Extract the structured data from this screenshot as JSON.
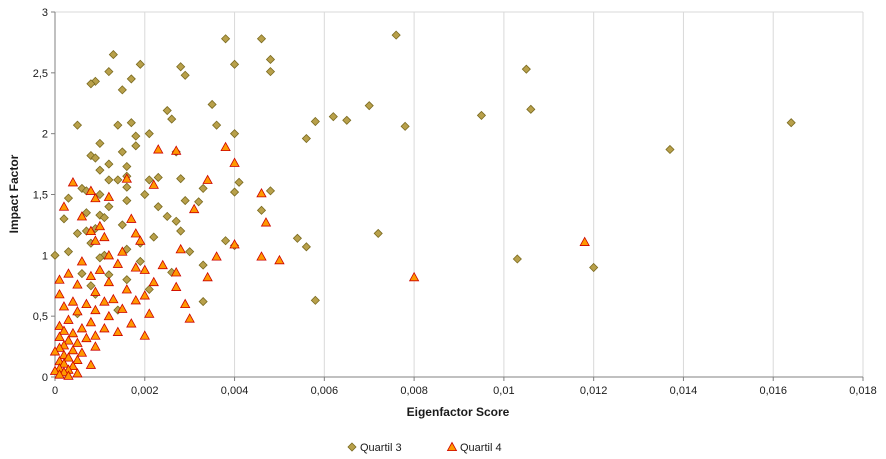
{
  "chart_data": {
    "type": "scatter",
    "xlabel": "Eigenfactor Score",
    "ylabel": "Impact Factor",
    "xlim": [
      0,
      0.018
    ],
    "ylim": [
      0,
      3
    ],
    "x_ticks": [
      0,
      0.002,
      0.004,
      0.006,
      0.008,
      0.01,
      0.012,
      0.014,
      0.016,
      0.018
    ],
    "x_tick_labels": [
      "0",
      "0,002",
      "0,004",
      "0,006",
      "0,008",
      "0,01",
      "0,012",
      "0,014",
      "0,016",
      "0,018"
    ],
    "y_ticks": [
      0,
      0.5,
      1,
      1.5,
      2,
      2.5,
      3
    ],
    "y_tick_labels": [
      "0",
      "0,5",
      "1",
      "1,5",
      "2",
      "2,5",
      "3"
    ],
    "grid": "vertical",
    "legend": "bottom",
    "series": [
      {
        "name": "Quartil 3",
        "marker": "diamond",
        "color": "#b8a04a",
        "stroke": "#7a6a20",
        "points": [
          [
            0.0076,
            2.81
          ],
          [
            0.0038,
            2.78
          ],
          [
            0.0046,
            2.78
          ],
          [
            0.0013,
            2.65
          ],
          [
            0.0048,
            2.61
          ],
          [
            0.0019,
            2.57
          ],
          [
            0.004,
            2.57
          ],
          [
            0.0028,
            2.55
          ],
          [
            0.0105,
            2.53
          ],
          [
            0.0048,
            2.51
          ],
          [
            0.0012,
            2.51
          ],
          [
            0.0029,
            2.48
          ],
          [
            0.0017,
            2.45
          ],
          [
            0.0009,
            2.43
          ],
          [
            0.0008,
            2.41
          ],
          [
            0.0015,
            2.36
          ],
          [
            0.0035,
            2.24
          ],
          [
            0.007,
            2.23
          ],
          [
            0.0106,
            2.2
          ],
          [
            0.0025,
            2.19
          ],
          [
            0.0062,
            2.14
          ],
          [
            0.0095,
            2.15
          ],
          [
            0.0026,
            2.12
          ],
          [
            0.0065,
            2.11
          ],
          [
            0.0058,
            2.1
          ],
          [
            0.0164,
            2.09
          ],
          [
            0.0005,
            2.07
          ],
          [
            0.0014,
            2.07
          ],
          [
            0.0036,
            2.07
          ],
          [
            0.0078,
            2.06
          ],
          [
            0.0017,
            2.09
          ],
          [
            0.0021,
            2.0
          ],
          [
            0.004,
            2.0
          ],
          [
            0.0018,
            1.98
          ],
          [
            0.0056,
            1.96
          ],
          [
            0.001,
            1.92
          ],
          [
            0.0018,
            1.9
          ],
          [
            0.0137,
            1.87
          ],
          [
            0.0027,
            1.85
          ],
          [
            0.0015,
            1.85
          ],
          [
            0.0008,
            1.82
          ],
          [
            0.0009,
            1.8
          ],
          [
            0.0012,
            1.75
          ],
          [
            0.0016,
            1.73
          ],
          [
            0.001,
            1.7
          ],
          [
            0.0016,
            1.65
          ],
          [
            0.0023,
            1.64
          ],
          [
            0.0012,
            1.62
          ],
          [
            0.0014,
            1.62
          ],
          [
            0.0021,
            1.62
          ],
          [
            0.0028,
            1.63
          ],
          [
            0.0041,
            1.6
          ],
          [
            0.0016,
            1.56
          ],
          [
            0.0006,
            1.55
          ],
          [
            0.0007,
            1.53
          ],
          [
            0.0033,
            1.55
          ],
          [
            0.0048,
            1.53
          ],
          [
            0.004,
            1.52
          ],
          [
            0.002,
            1.5
          ],
          [
            0.001,
            1.5
          ],
          [
            0.0003,
            1.47
          ],
          [
            0.0016,
            1.45
          ],
          [
            0.0029,
            1.45
          ],
          [
            0.0032,
            1.44
          ],
          [
            0.0012,
            1.4
          ],
          [
            0.0023,
            1.4
          ],
          [
            0.0007,
            1.35
          ],
          [
            0.0046,
            1.37
          ],
          [
            0.001,
            1.33
          ],
          [
            0.0011,
            1.31
          ],
          [
            0.0025,
            1.32
          ],
          [
            0.0002,
            1.3
          ],
          [
            0.0027,
            1.28
          ],
          [
            0.0015,
            1.25
          ],
          [
            0.0009,
            1.22
          ],
          [
            0.0007,
            1.2
          ],
          [
            0.0028,
            1.2
          ],
          [
            0.0005,
            1.18
          ],
          [
            0.0072,
            1.18
          ],
          [
            0.0022,
            1.15
          ],
          [
            0.0054,
            1.14
          ],
          [
            0.0038,
            1.12
          ],
          [
            0.0008,
            1.1
          ],
          [
            0.0019,
            1.1
          ],
          [
            0.004,
            1.08
          ],
          [
            0.0056,
            1.07
          ],
          [
            0.0016,
            1.05
          ],
          [
            0.0003,
            1.03
          ],
          [
            0.003,
            1.03
          ],
          [
            0.0011,
            1.0
          ],
          [
            0.0,
            1.0
          ],
          [
            0.0103,
            0.97
          ],
          [
            0.001,
            0.98
          ],
          [
            0.0019,
            0.95
          ],
          [
            0.0033,
            0.92
          ],
          [
            0.012,
            0.9
          ],
          [
            0.0006,
            0.85
          ],
          [
            0.0026,
            0.86
          ],
          [
            0.0012,
            0.84
          ],
          [
            0.0016,
            0.8
          ],
          [
            0.0008,
            0.75
          ],
          [
            0.0021,
            0.72
          ],
          [
            0.0009,
            0.68
          ],
          [
            0.0033,
            0.62
          ],
          [
            0.0058,
            0.63
          ],
          [
            0.0014,
            0.55
          ],
          [
            0.0005,
            0.52
          ]
        ]
      },
      {
        "name": "Quartil 4",
        "marker": "triangle",
        "color": "#ff9900",
        "stroke": "#cc0000",
        "points": [
          [
            0.0038,
            1.89
          ],
          [
            0.0023,
            1.87
          ],
          [
            0.0027,
            1.86
          ],
          [
            0.004,
            1.76
          ],
          [
            0.0016,
            1.63
          ],
          [
            0.0034,
            1.62
          ],
          [
            0.0004,
            1.6
          ],
          [
            0.0022,
            1.58
          ],
          [
            0.0008,
            1.53
          ],
          [
            0.0046,
            1.51
          ],
          [
            0.0012,
            1.48
          ],
          [
            0.0009,
            1.47
          ],
          [
            0.0002,
            1.4
          ],
          [
            0.0031,
            1.38
          ],
          [
            0.0006,
            1.32
          ],
          [
            0.0017,
            1.3
          ],
          [
            0.0047,
            1.27
          ],
          [
            0.001,
            1.24
          ],
          [
            0.0008,
            1.2
          ],
          [
            0.0018,
            1.18
          ],
          [
            0.0011,
            1.15
          ],
          [
            0.0009,
            1.12
          ],
          [
            0.0019,
            1.12
          ],
          [
            0.0118,
            1.11
          ],
          [
            0.004,
            1.09
          ],
          [
            0.0028,
            1.05
          ],
          [
            0.0015,
            1.03
          ],
          [
            0.0012,
            1.0
          ],
          [
            0.0046,
            0.99
          ],
          [
            0.0036,
            0.99
          ],
          [
            0.005,
            0.96
          ],
          [
            0.0006,
            0.95
          ],
          [
            0.0024,
            0.92
          ],
          [
            0.0014,
            0.93
          ],
          [
            0.0018,
            0.9
          ],
          [
            0.002,
            0.88
          ],
          [
            0.001,
            0.88
          ],
          [
            0.0027,
            0.86
          ],
          [
            0.0003,
            0.85
          ],
          [
            0.0008,
            0.83
          ],
          [
            0.008,
            0.82
          ],
          [
            0.0001,
            0.8
          ],
          [
            0.0034,
            0.82
          ],
          [
            0.0012,
            0.78
          ],
          [
            0.0022,
            0.78
          ],
          [
            0.0005,
            0.76
          ],
          [
            0.0027,
            0.74
          ],
          [
            0.0016,
            0.72
          ],
          [
            0.0009,
            0.7
          ],
          [
            0.0001,
            0.68
          ],
          [
            0.002,
            0.67
          ],
          [
            0.0013,
            0.64
          ],
          [
            0.0004,
            0.62
          ],
          [
            0.0011,
            0.62
          ],
          [
            0.0018,
            0.63
          ],
          [
            0.0007,
            0.6
          ],
          [
            0.0029,
            0.6
          ],
          [
            0.0002,
            0.58
          ],
          [
            0.0015,
            0.56
          ],
          [
            0.0009,
            0.55
          ],
          [
            0.0005,
            0.54
          ],
          [
            0.0021,
            0.52
          ],
          [
            0.0012,
            0.5
          ],
          [
            0.003,
            0.48
          ],
          [
            0.0003,
            0.47
          ],
          [
            0.0008,
            0.45
          ],
          [
            0.0017,
            0.44
          ],
          [
            0.0001,
            0.42
          ],
          [
            0.0006,
            0.4
          ],
          [
            0.0011,
            0.4
          ],
          [
            0.0002,
            0.38
          ],
          [
            0.0014,
            0.37
          ],
          [
            0.0004,
            0.36
          ],
          [
            0.0009,
            0.34
          ],
          [
            0.002,
            0.34
          ],
          [
            0.0001,
            0.33
          ],
          [
            0.0007,
            0.32
          ],
          [
            0.0003,
            0.3
          ],
          [
            0.0005,
            0.28
          ],
          [
            0.0002,
            0.26
          ],
          [
            0.0009,
            0.25
          ],
          [
            0.0001,
            0.24
          ],
          [
            0.0004,
            0.22
          ],
          [
            0.0,
            0.21
          ],
          [
            0.0006,
            0.2
          ],
          [
            0.0002,
            0.18
          ],
          [
            0.0003,
            0.16
          ],
          [
            0.0005,
            0.14
          ],
          [
            0.0001,
            0.13
          ],
          [
            0.0002,
            0.11
          ],
          [
            0.0008,
            0.1
          ],
          [
            0.0004,
            0.09
          ],
          [
            0.0001,
            0.07
          ],
          [
            0.0003,
            0.06
          ],
          [
            0.0,
            0.05
          ],
          [
            0.0002,
            0.04
          ],
          [
            0.0005,
            0.03
          ],
          [
            0.0001,
            0.02
          ],
          [
            0.0003,
            0.01
          ]
        ]
      }
    ]
  }
}
